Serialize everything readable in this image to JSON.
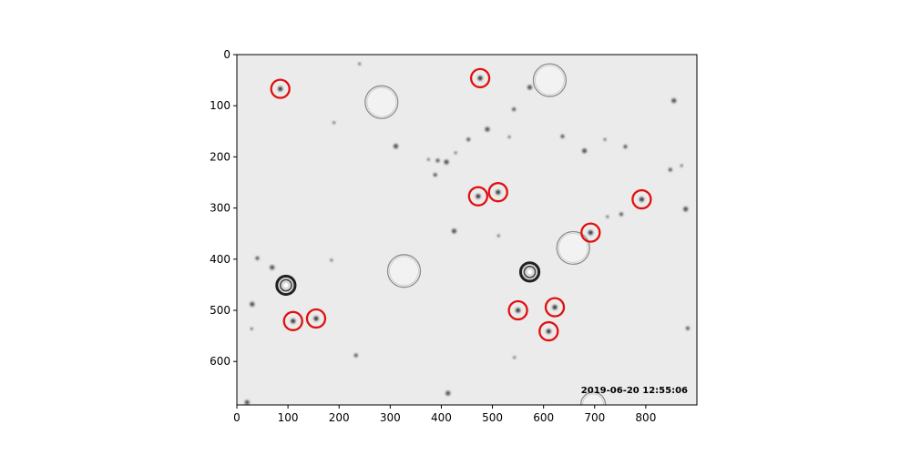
{
  "image": {
    "x_range": [
      0,
      900
    ],
    "y_range": [
      0,
      685
    ],
    "background_color": "#ebebeb",
    "border_color": "#000000",
    "x_ticks": [
      0,
      100,
      200,
      300,
      400,
      500,
      600,
      700,
      800
    ],
    "y_ticks": [
      0,
      100,
      200,
      300,
      400,
      500,
      600
    ],
    "timestamp": "2019-06-20 12:55:06"
  },
  "detections": {
    "marker_color": "#e01010",
    "points": [
      {
        "x": 85,
        "y": 67
      },
      {
        "x": 476,
        "y": 46
      },
      {
        "x": 472,
        "y": 277
      },
      {
        "x": 511,
        "y": 269
      },
      {
        "x": 792,
        "y": 283
      },
      {
        "x": 692,
        "y": 348
      },
      {
        "x": 110,
        "y": 521
      },
      {
        "x": 155,
        "y": 516
      },
      {
        "x": 550,
        "y": 500
      },
      {
        "x": 622,
        "y": 494
      },
      {
        "x": 610,
        "y": 541
      }
    ]
  },
  "bubbles": [
    {
      "x": 283,
      "y": 93,
      "r": 32
    },
    {
      "x": 612,
      "y": 50,
      "r": 32
    },
    {
      "x": 327,
      "y": 423,
      "r": 32
    },
    {
      "x": 658,
      "y": 378,
      "r": 32
    },
    {
      "x": 697,
      "y": 684,
      "r": 24
    }
  ],
  "dark_rings": [
    {
      "x": 96,
      "y": 451,
      "r": 18
    },
    {
      "x": 573,
      "y": 425,
      "r": 18
    }
  ],
  "specks": [
    {
      "x": 240,
      "y": 18
    },
    {
      "x": 273,
      "y": 68
    },
    {
      "x": 311,
      "y": 179
    },
    {
      "x": 375,
      "y": 205
    },
    {
      "x": 393,
      "y": 207
    },
    {
      "x": 410,
      "y": 210
    },
    {
      "x": 428,
      "y": 192
    },
    {
      "x": 453,
      "y": 166
    },
    {
      "x": 490,
      "y": 146
    },
    {
      "x": 533,
      "y": 161
    },
    {
      "x": 637,
      "y": 160
    },
    {
      "x": 680,
      "y": 188
    },
    {
      "x": 720,
      "y": 166
    },
    {
      "x": 760,
      "y": 180
    },
    {
      "x": 855,
      "y": 90
    },
    {
      "x": 870,
      "y": 217
    },
    {
      "x": 848,
      "y": 225
    },
    {
      "x": 878,
      "y": 302
    },
    {
      "x": 725,
      "y": 317
    },
    {
      "x": 752,
      "y": 312
    },
    {
      "x": 30,
      "y": 488
    },
    {
      "x": 29,
      "y": 536
    },
    {
      "x": 40,
      "y": 398
    },
    {
      "x": 69,
      "y": 416
    },
    {
      "x": 185,
      "y": 402
    },
    {
      "x": 233,
      "y": 588
    },
    {
      "x": 413,
      "y": 662
    },
    {
      "x": 543,
      "y": 592
    },
    {
      "x": 882,
      "y": 535
    },
    {
      "x": 425,
      "y": 345
    },
    {
      "x": 512,
      "y": 354
    },
    {
      "x": 542,
      "y": 107
    },
    {
      "x": 573,
      "y": 64
    },
    {
      "x": 190,
      "y": 133
    },
    {
      "x": 388,
      "y": 235
    },
    {
      "x": 20,
      "y": 680
    }
  ]
}
